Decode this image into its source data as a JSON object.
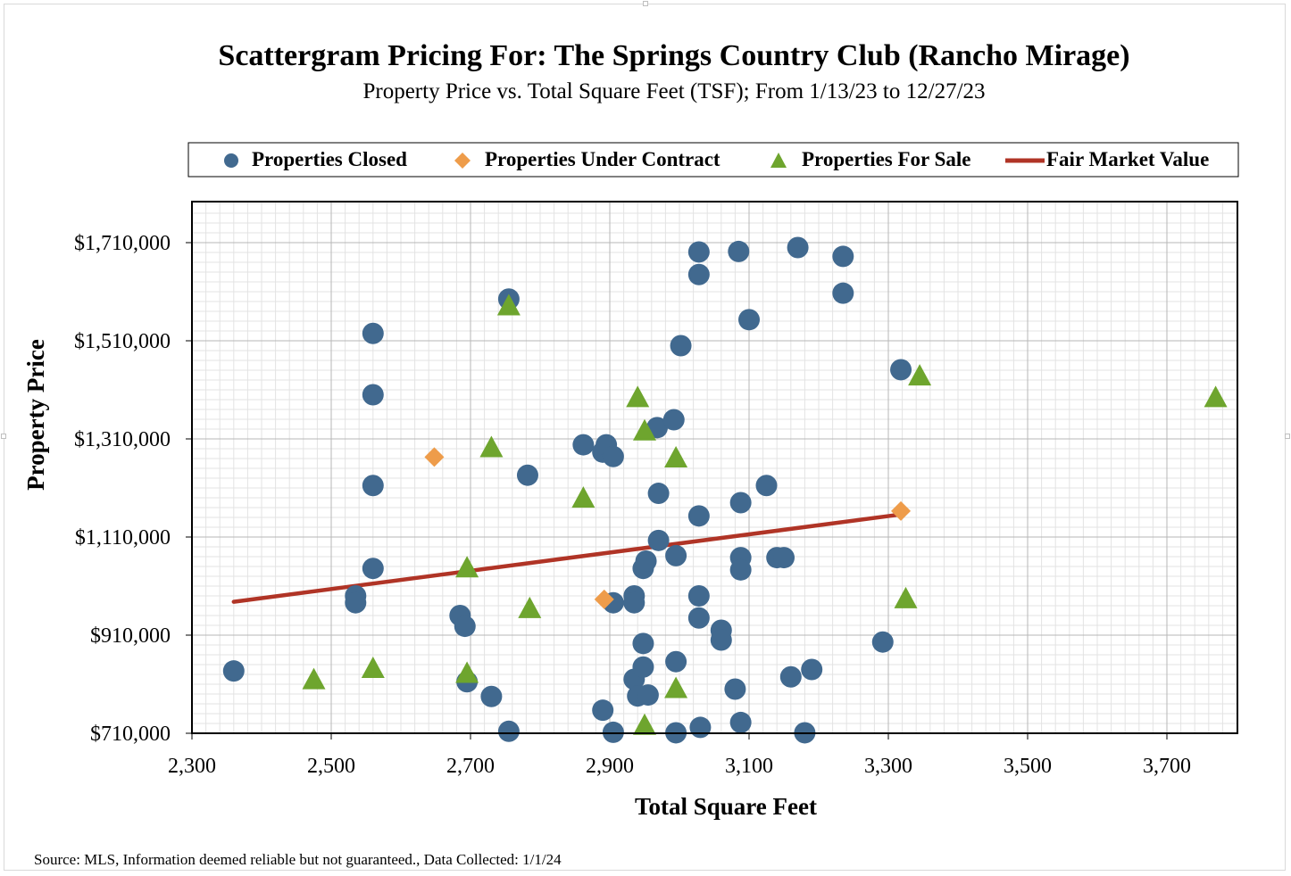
{
  "chart_data": {
    "type": "scatter",
    "title": "Scattergram Pricing For: The Springs Country Club (Rancho Mirage)",
    "subtitle": "Property Price vs. Total Square Feet (TSF); From 1/13/23 to 12/27/23",
    "xlabel": "Total Square Feet",
    "ylabel": "Property Price",
    "xlim": [
      2300,
      3800
    ],
    "ylim": [
      710000,
      1800000
    ],
    "x_ticks": [
      2300,
      2500,
      2700,
      2900,
      3100,
      3300,
      3500,
      3700
    ],
    "x_tick_labels": [
      "2,300",
      "2,500",
      "2,700",
      "2,900",
      "3,100",
      "3,300",
      "3,500",
      "3,700"
    ],
    "y_ticks": [
      710000,
      910000,
      1110000,
      1310000,
      1510000,
      1710000
    ],
    "y_tick_labels": [
      "$710,000",
      "$910,000",
      "$1,110,000",
      "$1,310,000",
      "$1,510,000",
      "$1,710,000"
    ],
    "grid": true,
    "legend_position": "top",
    "series": [
      {
        "name": "Properties Closed",
        "marker": "circle",
        "color": "#41698f",
        "points": [
          [
            2360,
            837000
          ],
          [
            2535,
            990000
          ],
          [
            2535,
            976000
          ],
          [
            2560,
            1525000
          ],
          [
            2560,
            1400000
          ],
          [
            2560,
            1215000
          ],
          [
            2560,
            1046000
          ],
          [
            2685,
            950000
          ],
          [
            2692,
            928000
          ],
          [
            2695,
            815000
          ],
          [
            2730,
            785000
          ],
          [
            2755,
            1595000
          ],
          [
            2755,
            714000
          ],
          [
            2782,
            1236000
          ],
          [
            2862,
            1298000
          ],
          [
            2890,
            757000
          ],
          [
            2890,
            1283000
          ],
          [
            2895,
            1298000
          ],
          [
            2905,
            1274000
          ],
          [
            2905,
            976000
          ],
          [
            2905,
            712000
          ],
          [
            2935,
            990000
          ],
          [
            2935,
            976000
          ],
          [
            2935,
            820000
          ],
          [
            2940,
            786000
          ],
          [
            2948,
            1046000
          ],
          [
            2948,
            893000
          ],
          [
            2948,
            845000
          ],
          [
            2952,
            1061000
          ],
          [
            2955,
            788000
          ],
          [
            2968,
            1333000
          ],
          [
            2970,
            1199000
          ],
          [
            2970,
            1103000
          ],
          [
            2992,
            1349000
          ],
          [
            2995,
            1072000
          ],
          [
            2995,
            856000
          ],
          [
            2995,
            711000
          ],
          [
            3002,
            1500000
          ],
          [
            3028,
            1691000
          ],
          [
            3028,
            1645000
          ],
          [
            3028,
            1153000
          ],
          [
            3028,
            990000
          ],
          [
            3028,
            945000
          ],
          [
            3030,
            722000
          ],
          [
            3060,
            920000
          ],
          [
            3060,
            900000
          ],
          [
            3080,
            800000
          ],
          [
            3085,
            1692000
          ],
          [
            3088,
            1180000
          ],
          [
            3088,
            1068000
          ],
          [
            3088,
            1043000
          ],
          [
            3088,
            732000
          ],
          [
            3100,
            1553000
          ],
          [
            3125,
            1215000
          ],
          [
            3140,
            1068000
          ],
          [
            3150,
            1068000
          ],
          [
            3160,
            825000
          ],
          [
            3170,
            1700000
          ],
          [
            3180,
            711000
          ],
          [
            3190,
            840000
          ],
          [
            3235,
            1682000
          ],
          [
            3235,
            1607000
          ],
          [
            3292,
            896000
          ],
          [
            3318,
            1451000
          ]
        ]
      },
      {
        "name": "Properties Under Contract",
        "marker": "diamond",
        "color": "#ee9c4a",
        "points": [
          [
            2648,
            1273000
          ],
          [
            2892,
            983000
          ],
          [
            3318,
            1163000
          ]
        ]
      },
      {
        "name": "Properties For Sale",
        "marker": "triangle",
        "color": "#6ea52e",
        "points": [
          [
            2475,
            818000
          ],
          [
            2560,
            841000
          ],
          [
            2695,
            1046000
          ],
          [
            2695,
            831000
          ],
          [
            2730,
            1291000
          ],
          [
            2755,
            1580000
          ],
          [
            2785,
            963000
          ],
          [
            2862,
            1188000
          ],
          [
            2940,
            1393000
          ],
          [
            2950,
            1325000
          ],
          [
            2950,
            725000
          ],
          [
            2995,
            1270000
          ],
          [
            2995,
            800000
          ],
          [
            3325,
            983000
          ],
          [
            3345,
            1437000
          ],
          [
            3770,
            1393000
          ]
        ]
      },
      {
        "name": "Fair Market Value",
        "marker": "line",
        "color": "#b03426",
        "points": [
          [
            2360,
            978000
          ],
          [
            3318,
            1156000
          ]
        ]
      }
    ]
  },
  "footer": {
    "source": "Source: MLS, Information deemed reliable but not guaranteed., Data Collected: 1/1/24"
  }
}
